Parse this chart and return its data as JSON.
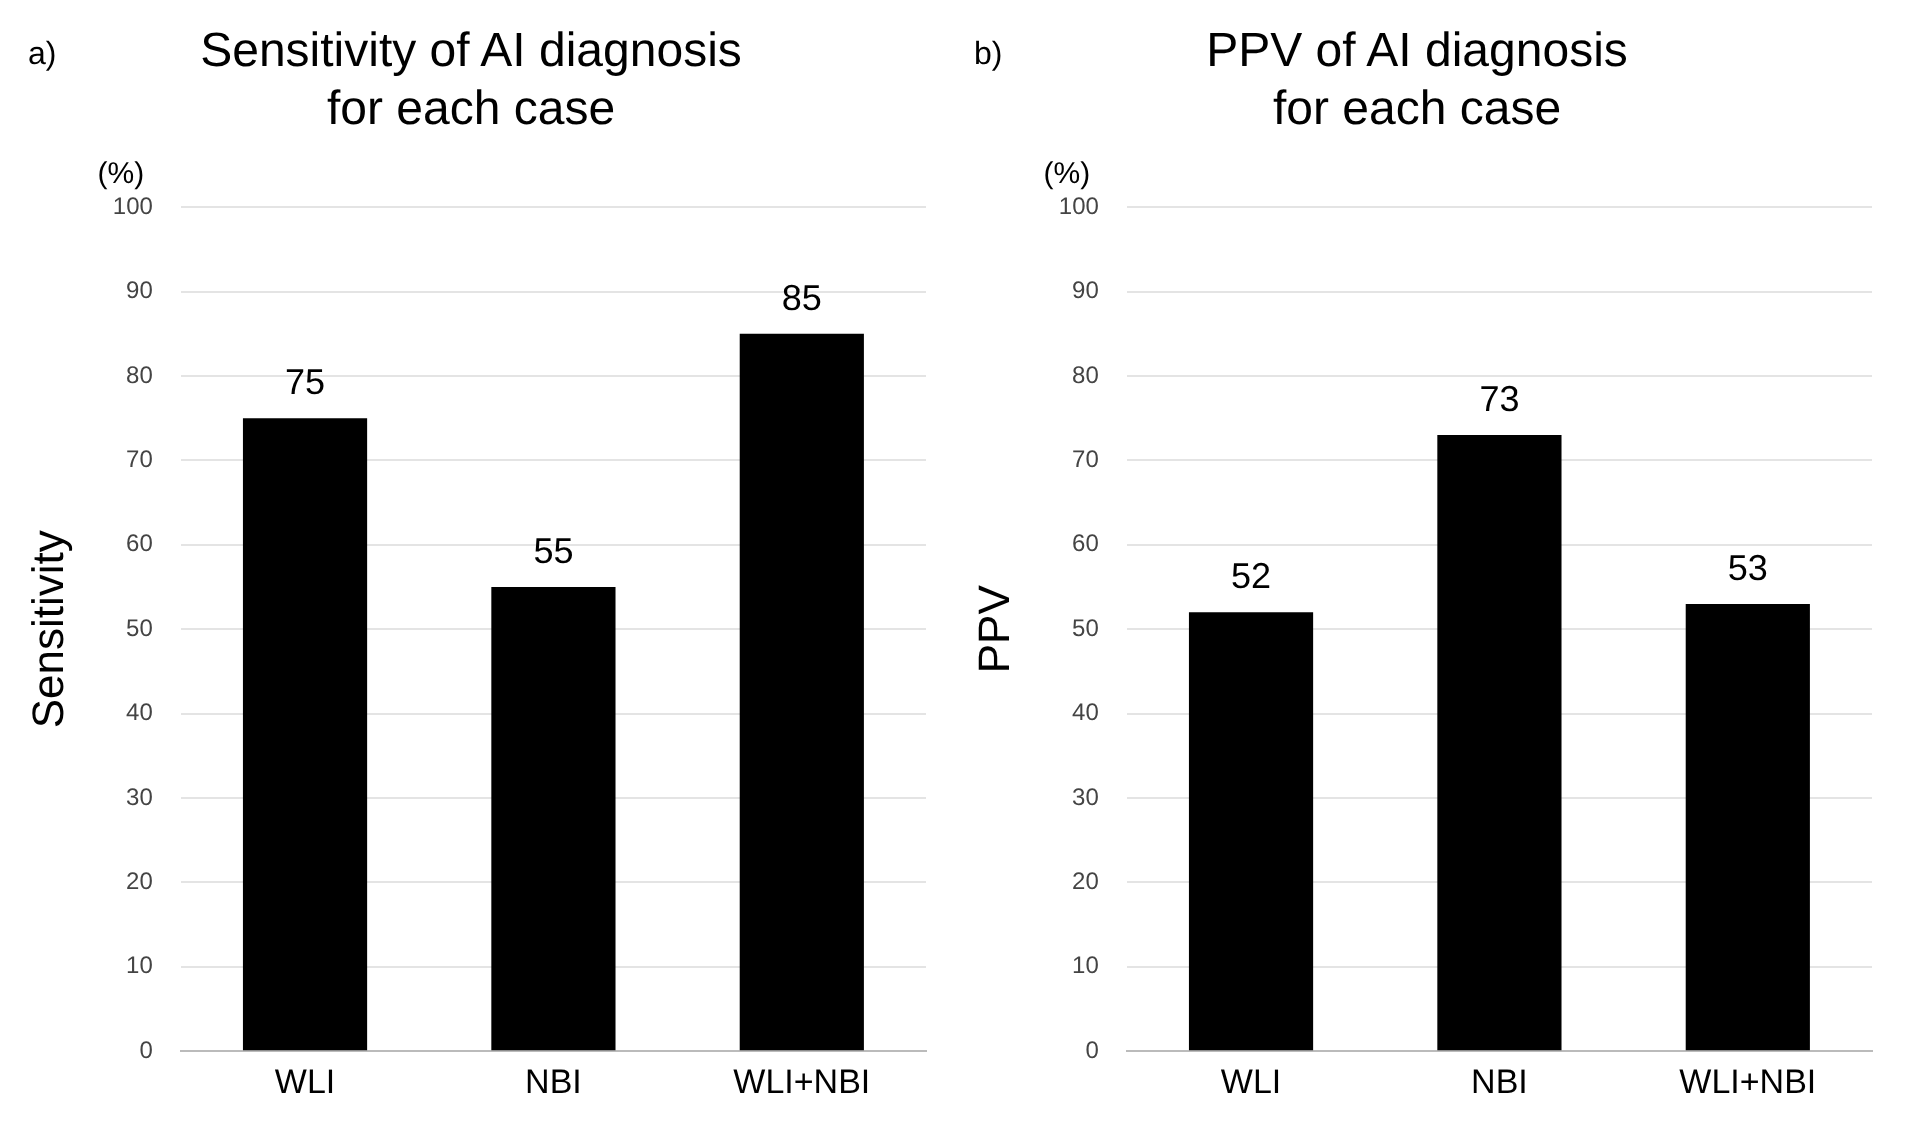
{
  "chart_data": [
    {
      "type": "bar",
      "title": "Sensitivity of AI diagnosis\nfor each case",
      "ylabel": "Sensitivity",
      "categories": [
        "WLI",
        "NBI",
        "WLI+NBI"
      ],
      "values": [
        75,
        55,
        85
      ],
      "color": "#000000",
      "ylim": [
        0,
        100
      ],
      "yticks": [
        0,
        10,
        20,
        30,
        40,
        50,
        60,
        70,
        80,
        90,
        100
      ],
      "grid": "y",
      "data_labels": true,
      "annotations": [
        "a)",
        "(%)"
      ]
    },
    {
      "type": "bar",
      "title": "PPV of AI diagnosis\nfor each case",
      "ylabel": "PPV",
      "categories": [
        "WLI",
        "NBI",
        "WLI+NBI"
      ],
      "values": [
        52,
        73,
        53
      ],
      "color": "#000000",
      "ylim": [
        0,
        100
      ],
      "yticks": [
        0,
        10,
        20,
        30,
        40,
        50,
        60,
        70,
        80,
        90,
        100
      ],
      "grid": "y",
      "data_labels": true,
      "annotations": [
        "b)",
        "(%)"
      ]
    }
  ]
}
